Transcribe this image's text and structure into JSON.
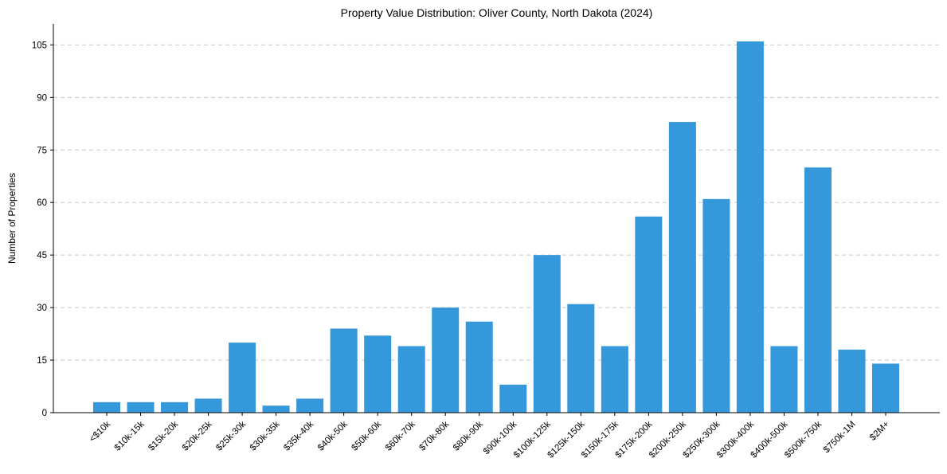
{
  "chart_data": {
    "type": "bar",
    "title": "Property Value Distribution: Oliver County, North Dakota (2024)",
    "xlabel": "",
    "ylabel": "Number of Properties",
    "ylim": [
      0,
      111
    ],
    "yticks": [
      0,
      15,
      30,
      45,
      60,
      75,
      90,
      105
    ],
    "grid": "horizontal dashed",
    "bar_color": "#3498db",
    "grid_color": "#c8c8c8",
    "categories": [
      "<$10k",
      "$10k-15k",
      "$15k-20k",
      "$20k-25k",
      "$25k-30k",
      "$30k-35k",
      "$35k-40k",
      "$40k-50k",
      "$50k-60k",
      "$60k-70k",
      "$70k-80k",
      "$80k-90k",
      "$90k-100k",
      "$100k-125k",
      "$125k-150k",
      "$150k-175k",
      "$175k-200k",
      "$200k-250k",
      "$250k-300k",
      "$300k-400k",
      "$400k-500k",
      "$500k-750k",
      "$750k-1M",
      "$2M+"
    ],
    "values": [
      3,
      3,
      3,
      4,
      20,
      2,
      4,
      24,
      22,
      19,
      30,
      26,
      8,
      45,
      31,
      19,
      56,
      83,
      61,
      106,
      19,
      70,
      18,
      14
    ]
  }
}
